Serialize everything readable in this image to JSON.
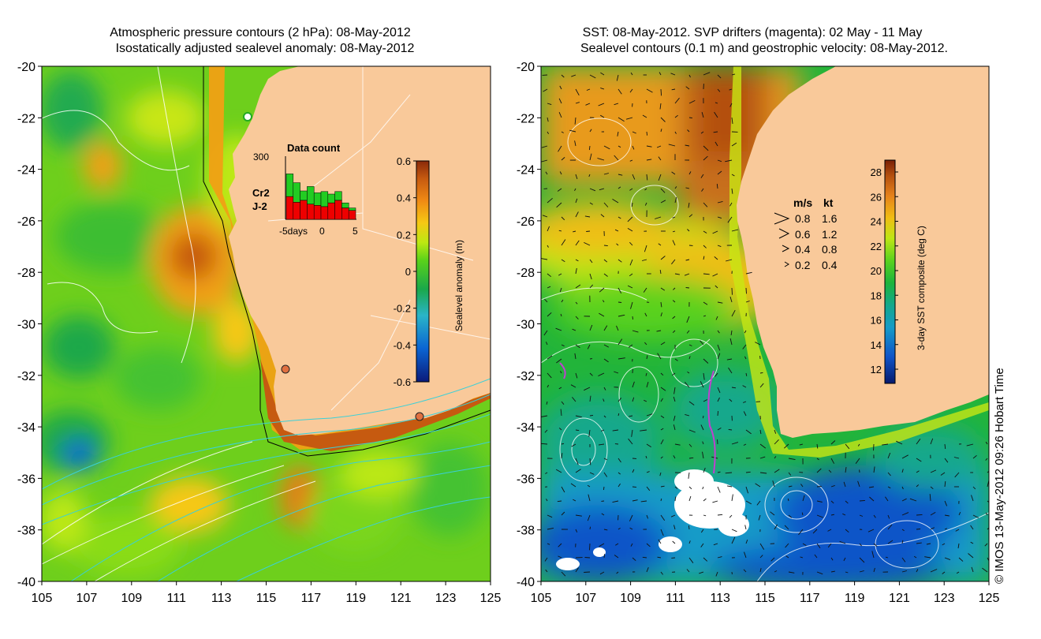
{
  "left_panel": {
    "title_line1": "Atmospheric pressure contours (2 hPa): 08-May-2012",
    "title_line2": "Isostatically adjusted sealevel anomaly: 08-May-2012",
    "y_ticks": [
      "-20",
      "-22",
      "-24",
      "-26",
      "-28",
      "-30",
      "-32",
      "-34",
      "-36",
      "-38",
      "-40"
    ],
    "x_ticks": [
      "105",
      "107",
      "109",
      "111",
      "113",
      "115",
      "117",
      "119",
      "121",
      "123",
      "125"
    ],
    "colorbar": {
      "label": "Sealevel anomaly (m)",
      "ticks": [
        "0.6",
        "0.4",
        "0.2",
        "0",
        "-0.2",
        "-0.4",
        "-0.6"
      ]
    },
    "inset": {
      "title": "Data count",
      "ymax_label": "300",
      "x_labels": [
        "-5days",
        "0",
        "5"
      ],
      "legend": [
        {
          "label": "Cr2",
          "color": "#22cc22"
        },
        {
          "label": "J-2",
          "color": "#ee0000"
        }
      ],
      "bars_total": [
        0.72,
        0.58,
        0.45,
        0.52,
        0.42,
        0.44,
        0.4,
        0.44,
        0.26,
        0.18
      ],
      "bars_j2": [
        0.36,
        0.27,
        0.3,
        0.24,
        0.22,
        0.2,
        0.26,
        0.3,
        0.18,
        0.14
      ]
    }
  },
  "right_panel": {
    "title_line1": "SST: 08-May-2012. SVP drifters (magenta): 02 May - 11 May",
    "title_line2": "Sealevel contours (0.1 m) and geostrophic velocity: 08-May-2012.",
    "y_ticks": [
      "-20",
      "-22",
      "-24",
      "-26",
      "-28",
      "-30",
      "-32",
      "-34",
      "-36",
      "-38",
      "-40"
    ],
    "x_ticks": [
      "105",
      "107",
      "109",
      "111",
      "113",
      "115",
      "117",
      "119",
      "121",
      "123",
      "125"
    ],
    "colorbar": {
      "label": "3-day SST composite (deg C)",
      "ticks": [
        "28",
        "26",
        "24",
        "22",
        "20",
        "18",
        "16",
        "14",
        "12"
      ]
    },
    "velocity_legend": {
      "header_ms": "m/s",
      "header_kt": "kt",
      "rows": [
        {
          "ms": "0.8",
          "kt": "1.6"
        },
        {
          "ms": "0.6",
          "kt": "1.2"
        },
        {
          "ms": "0.4",
          "kt": "0.8"
        },
        {
          "ms": "0.2",
          "kt": "0.4"
        }
      ]
    }
  },
  "footer_vertical": "© IMOS 13-May-2012 09:26 Hobart Time",
  "colors": {
    "land": "#f9c99a",
    "sla_colormap": [
      "#0a1a7a",
      "#0a64d2",
      "#2ab4c8",
      "#1aa84a",
      "#5ad21a",
      "#bce812",
      "#f6c814",
      "#f08a14",
      "#c65a10",
      "#8a2a0a"
    ],
    "sst_colormap": [
      "#061a6e",
      "#0f54c8",
      "#149bc8",
      "#14a88c",
      "#1cb43c",
      "#5ad21e",
      "#bee614",
      "#f0be14",
      "#e6821a",
      "#b4500f",
      "#7a2006"
    ]
  }
}
